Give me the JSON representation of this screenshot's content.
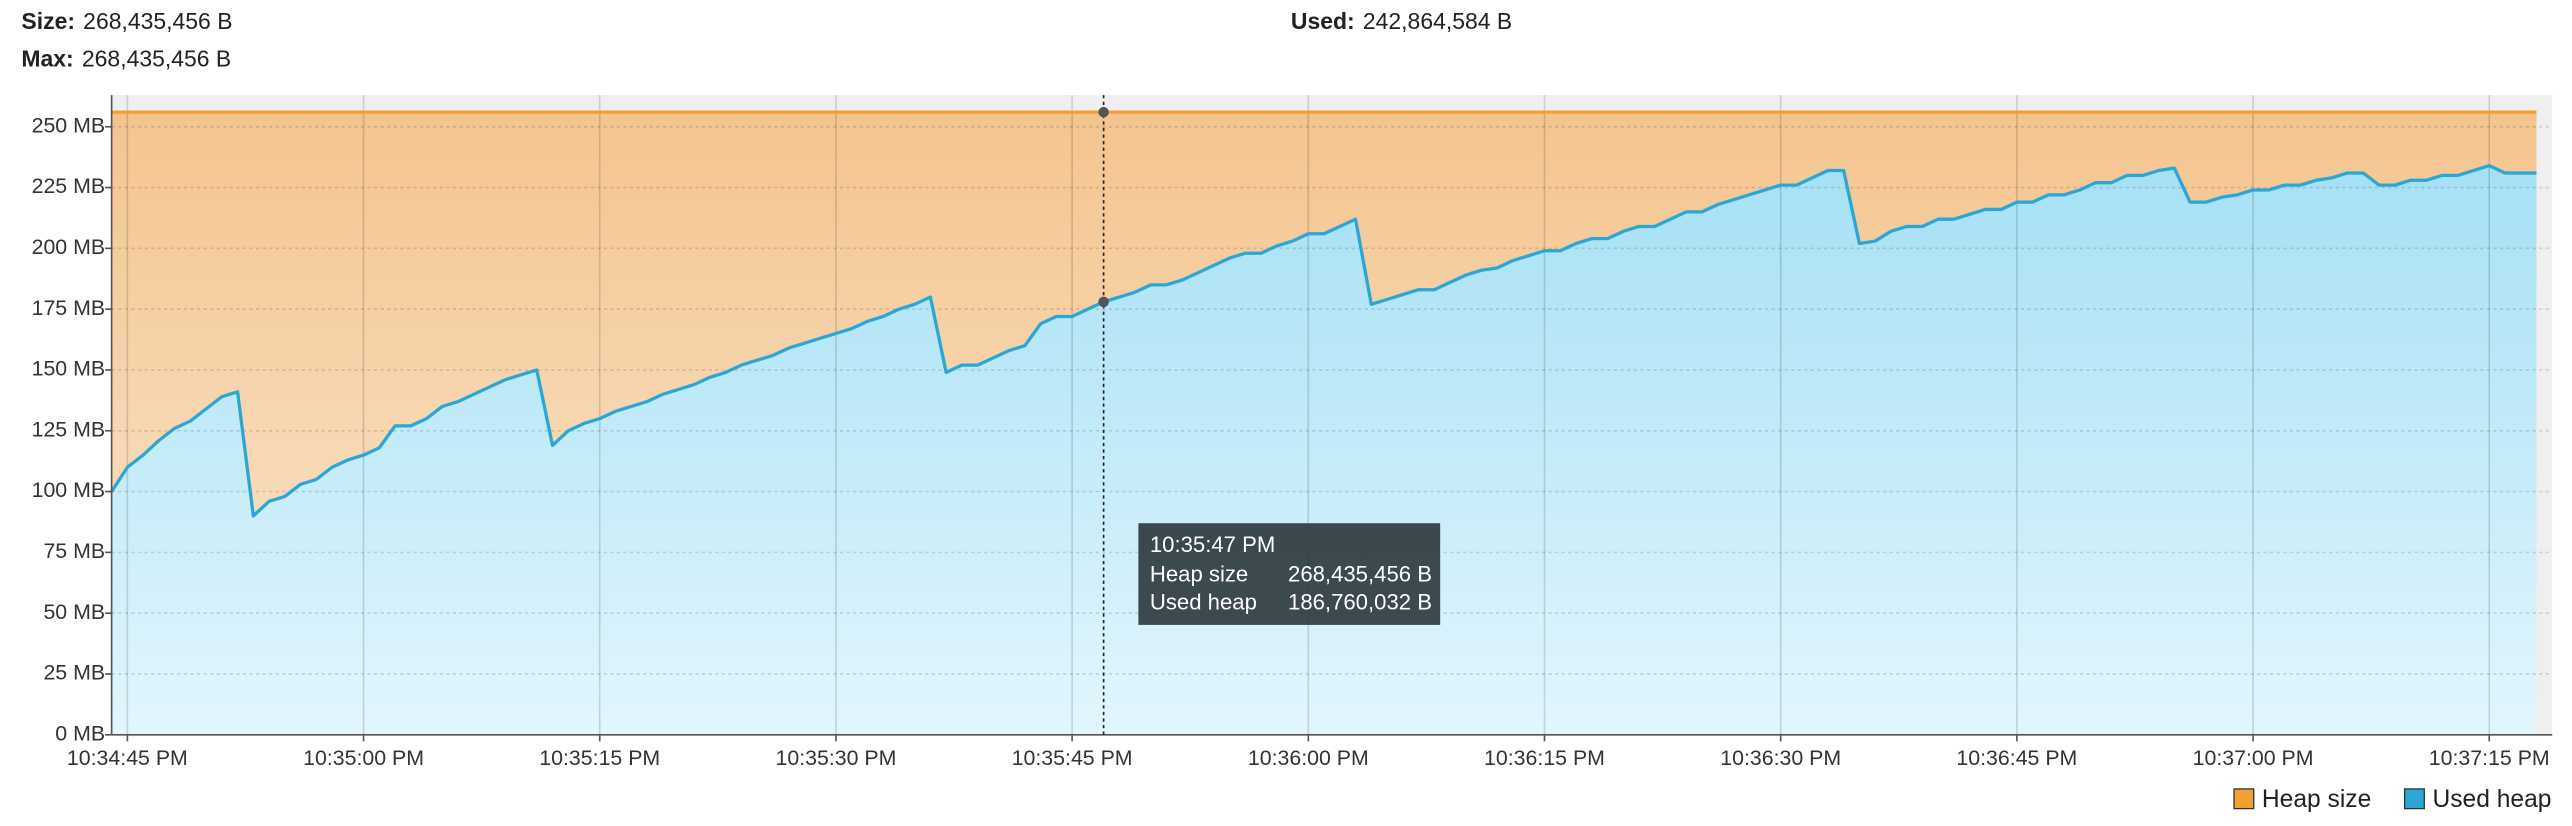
{
  "header": {
    "size_label": "Size:",
    "size": "268,435,456 B",
    "max_label": "Max:",
    "max": "268,435,456 B",
    "used_label": "Used:",
    "used": "242,864,584 B"
  },
  "chart_data": {
    "type": "area",
    "grid": true,
    "legend": "bottom-right",
    "xlim": [
      "10:34:44 PM",
      "10:37:19 PM"
    ],
    "ylim": [
      0,
      263
    ],
    "xticks": [
      "10:34:45 PM",
      "10:35:00 PM",
      "10:35:15 PM",
      "10:35:30 PM",
      "10:35:45 PM",
      "10:36:00 PM",
      "10:36:15 PM",
      "10:36:30 PM",
      "10:36:45 PM",
      "10:37:00 PM",
      "10:37:15 PM"
    ],
    "yticks": [
      {
        "value": 0,
        "label": "0 MB"
      },
      {
        "value": 25,
        "label": "25 MB"
      },
      {
        "value": 50,
        "label": "50 MB"
      },
      {
        "value": 75,
        "label": "75 MB"
      },
      {
        "value": 100,
        "label": "100 MB"
      },
      {
        "value": 125,
        "label": "125 MB"
      },
      {
        "value": 150,
        "label": "150 MB"
      },
      {
        "value": 175,
        "label": "175 MB"
      },
      {
        "value": 200,
        "label": "200 MB"
      },
      {
        "value": 225,
        "label": "225 MB"
      },
      {
        "value": 250,
        "label": "250 MB"
      }
    ],
    "x": [
      "10:34:44 PM",
      "10:34:45 PM",
      "10:34:46 PM",
      "10:34:47 PM",
      "10:34:48 PM",
      "10:34:49 PM",
      "10:34:50 PM",
      "10:34:51 PM",
      "10:34:52 PM",
      "10:34:53 PM",
      "10:34:54 PM",
      "10:34:55 PM",
      "10:34:56 PM",
      "10:34:57 PM",
      "10:34:58 PM",
      "10:34:59 PM",
      "10:35:00 PM",
      "10:35:01 PM",
      "10:35:02 PM",
      "10:35:03 PM",
      "10:35:04 PM",
      "10:35:05 PM",
      "10:35:06 PM",
      "10:35:07 PM",
      "10:35:08 PM",
      "10:35:09 PM",
      "10:35:10 PM",
      "10:35:11 PM",
      "10:35:12 PM",
      "10:35:13 PM",
      "10:35:14 PM",
      "10:35:15 PM",
      "10:35:16 PM",
      "10:35:17 PM",
      "10:35:18 PM",
      "10:35:19 PM",
      "10:35:20 PM",
      "10:35:21 PM",
      "10:35:22 PM",
      "10:35:23 PM",
      "10:35:24 PM",
      "10:35:25 PM",
      "10:35:26 PM",
      "10:35:27 PM",
      "10:35:28 PM",
      "10:35:29 PM",
      "10:35:30 PM",
      "10:35:31 PM",
      "10:35:32 PM",
      "10:35:33 PM",
      "10:35:34 PM",
      "10:35:35 PM",
      "10:35:36 PM",
      "10:35:37 PM",
      "10:35:38 PM",
      "10:35:39 PM",
      "10:35:40 PM",
      "10:35:41 PM",
      "10:35:42 PM",
      "10:35:43 PM",
      "10:35:44 PM",
      "10:35:45 PM",
      "10:35:46 PM",
      "10:35:47 PM",
      "10:35:48 PM",
      "10:35:49 PM",
      "10:35:50 PM",
      "10:35:51 PM",
      "10:35:52 PM",
      "10:35:53 PM",
      "10:35:54 PM",
      "10:35:55 PM",
      "10:35:56 PM",
      "10:35:57 PM",
      "10:35:58 PM",
      "10:35:59 PM",
      "10:36:00 PM",
      "10:36:01 PM",
      "10:36:02 PM",
      "10:36:03 PM",
      "10:36:04 PM",
      "10:36:05 PM",
      "10:36:06 PM",
      "10:36:07 PM",
      "10:36:08 PM",
      "10:36:09 PM",
      "10:36:10 PM",
      "10:36:11 PM",
      "10:36:12 PM",
      "10:36:13 PM",
      "10:36:14 PM",
      "10:36:15 PM",
      "10:36:16 PM",
      "10:36:17 PM",
      "10:36:18 PM",
      "10:36:19 PM",
      "10:36:20 PM",
      "10:36:21 PM",
      "10:36:22 PM",
      "10:36:23 PM",
      "10:36:24 PM",
      "10:36:25 PM",
      "10:36:26 PM",
      "10:36:27 PM",
      "10:36:28 PM",
      "10:36:29 PM",
      "10:36:30 PM",
      "10:36:31 PM",
      "10:36:32 PM",
      "10:36:33 PM",
      "10:36:34 PM",
      "10:36:35 PM",
      "10:36:36 PM",
      "10:36:37 PM",
      "10:36:38 PM",
      "10:36:39 PM",
      "10:36:40 PM",
      "10:36:41 PM",
      "10:36:42 PM",
      "10:36:43 PM",
      "10:36:44 PM",
      "10:36:45 PM",
      "10:36:46 PM",
      "10:36:47 PM",
      "10:36:48 PM",
      "10:36:49 PM",
      "10:36:50 PM",
      "10:36:51 PM",
      "10:36:52 PM",
      "10:36:53 PM",
      "10:36:54 PM",
      "10:36:55 PM",
      "10:36:56 PM",
      "10:36:57 PM",
      "10:36:58 PM",
      "10:36:59 PM",
      "10:37:00 PM",
      "10:37:01 PM",
      "10:37:02 PM",
      "10:37:03 PM",
      "10:37:04 PM",
      "10:37:05 PM",
      "10:37:06 PM",
      "10:37:07 PM",
      "10:37:08 PM",
      "10:37:09 PM",
      "10:37:10 PM",
      "10:37:11 PM",
      "10:37:12 PM",
      "10:37:13 PM",
      "10:37:14 PM",
      "10:37:15 PM",
      "10:37:16 PM",
      "10:37:17 PM",
      "10:37:18 PM"
    ],
    "series": [
      {
        "name": "Heap size",
        "color": "#f0a030",
        "fill": [
          "#f4c48e",
          "#fbe8d2"
        ],
        "values": [
          256,
          256,
          256,
          256,
          256,
          256,
          256,
          256,
          256,
          256,
          256,
          256,
          256,
          256,
          256,
          256,
          256,
          256,
          256,
          256,
          256,
          256,
          256,
          256,
          256,
          256,
          256,
          256,
          256,
          256,
          256,
          256,
          256,
          256,
          256,
          256,
          256,
          256,
          256,
          256,
          256,
          256,
          256,
          256,
          256,
          256,
          256,
          256,
          256,
          256,
          256,
          256,
          256,
          256,
          256,
          256,
          256,
          256,
          256,
          256,
          256,
          256,
          256,
          256,
          256,
          256,
          256,
          256,
          256,
          256,
          256,
          256,
          256,
          256,
          256,
          256,
          256,
          256,
          256,
          256,
          256,
          256,
          256,
          256,
          256,
          256,
          256,
          256,
          256,
          256,
          256,
          256,
          256,
          256,
          256,
          256,
          256,
          256,
          256,
          256,
          256,
          256,
          256,
          256,
          256,
          256,
          256,
          256,
          256,
          256,
          256,
          256,
          256,
          256,
          256,
          256,
          256,
          256,
          256,
          256,
          256,
          256,
          256,
          256,
          256,
          256,
          256,
          256,
          256,
          256,
          256,
          256,
          256,
          256,
          256,
          256,
          256,
          256,
          256,
          256,
          256,
          256,
          256,
          256,
          256,
          256,
          256,
          256,
          256,
          256,
          256,
          256,
          256,
          256,
          256
        ]
      },
      {
        "name": "Used heap",
        "color": "#2aa7d6",
        "fill": [
          "#a6e0f5",
          "#e2f6fd"
        ],
        "values": [
          100,
          110,
          115,
          121,
          126,
          129,
          134,
          139,
          141,
          90,
          96,
          98,
          103,
          105,
          110,
          113,
          115,
          118,
          127,
          127,
          130,
          135,
          137,
          140,
          143,
          146,
          148,
          150,
          119,
          125,
          128,
          130,
          133,
          135,
          137,
          140,
          142,
          144,
          147,
          149,
          152,
          154,
          156,
          159,
          161,
          163,
          165,
          167,
          170,
          172,
          175,
          177,
          180,
          149,
          152,
          152,
          155,
          158,
          160,
          169,
          172,
          172,
          175,
          178,
          180,
          182,
          185,
          185,
          187,
          190,
          193,
          196,
          198,
          198,
          201,
          203,
          206,
          206,
          209,
          212,
          177,
          179,
          181,
          183,
          183,
          186,
          189,
          191,
          192,
          195,
          197,
          199,
          199,
          202,
          204,
          204,
          207,
          209,
          209,
          212,
          215,
          215,
          218,
          220,
          222,
          224,
          226,
          226,
          229,
          232,
          232,
          202,
          203,
          207,
          209,
          209,
          212,
          212,
          214,
          216,
          216,
          219,
          219,
          222,
          222,
          224,
          227,
          227,
          230,
          230,
          232,
          233,
          219,
          219,
          221,
          222,
          224,
          224,
          226,
          226,
          228,
          229,
          231,
          231,
          226,
          226,
          228,
          228,
          230,
          230,
          232,
          234,
          231,
          231,
          231
        ]
      }
    ],
    "tooltip": {
      "time": "10:35:47 PM",
      "heap_label": "Heap size",
      "heap_value": "268,435,456 B",
      "used_label": "Used heap",
      "used_value": "186,760,032 B"
    }
  }
}
